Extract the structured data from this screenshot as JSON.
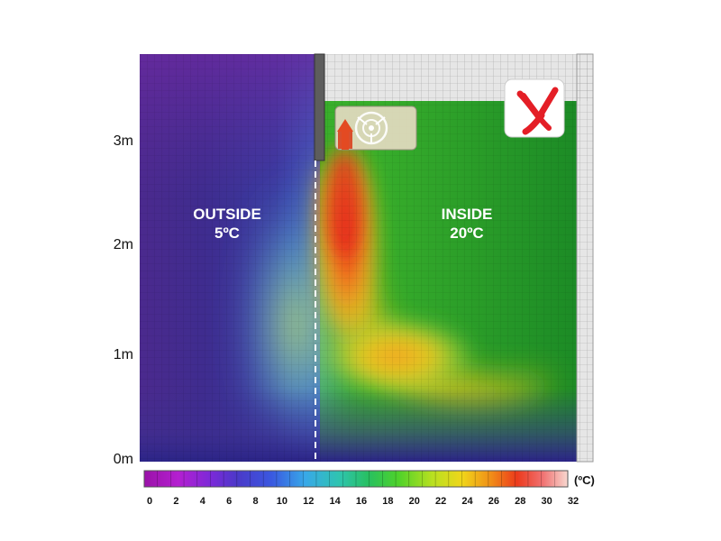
{
  "chart_data": {
    "type": "heatmap",
    "y_axis_labels": [
      "3m",
      "2m",
      "1m",
      "0m"
    ],
    "ylim": [
      0,
      3
    ],
    "regions": [
      {
        "name": "OUTSIDE",
        "temperature": "5ºC"
      },
      {
        "name": "INSIDE",
        "temperature": "20ºC"
      }
    ],
    "colorbar": {
      "ticks": [
        0,
        2,
        4,
        6,
        8,
        10,
        12,
        14,
        16,
        18,
        20,
        22,
        24,
        26,
        28,
        30,
        32
      ],
      "unit": "(ºC)",
      "range": [
        0,
        32
      ]
    },
    "ambient": {
      "outside": 5,
      "inside": 20
    },
    "hot_plume_peak": 28,
    "status_mark": "X",
    "colors": {
      "mark": "#e41e26",
      "wall": "#d9d9d9"
    }
  }
}
